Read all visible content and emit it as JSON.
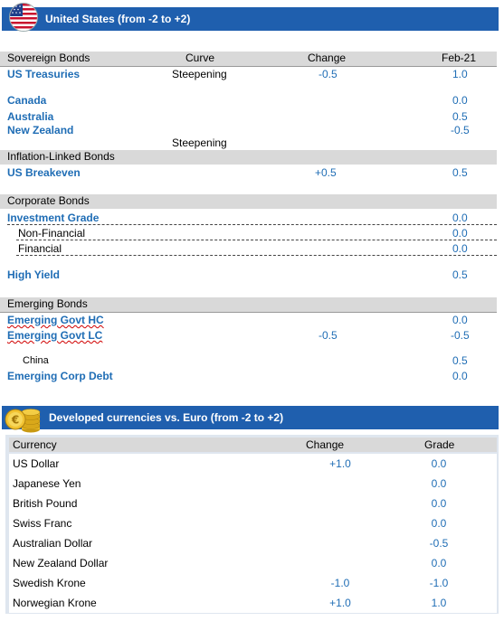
{
  "us_section": {
    "banner_title": "United States (from -2 to +2)",
    "flag_icon": "us-flag-icon",
    "headers": {
      "category": "Sovereign Bonds",
      "curve": "Curve",
      "change": "Change",
      "date": "Feb-21"
    },
    "sovereign": [
      {
        "name": "US Treasuries",
        "curve": "Steepening",
        "change": "-0.5",
        "value": "1.0"
      },
      {
        "name": "Canada",
        "value": "0.0"
      },
      {
        "name": "Australia",
        "value": "0.5"
      },
      {
        "name": "New Zealand",
        "value": "-0.5"
      },
      {
        "curve_only": "Steepening"
      }
    ],
    "inflation": {
      "title": "Inflation-Linked Bonds",
      "rows": [
        {
          "name": "US Breakeven",
          "change": "+0.5",
          "value": "0.5"
        }
      ]
    },
    "corporate": {
      "title": "Corporate Bonds",
      "rows": [
        {
          "name": "Investment Grade",
          "value": "0.0"
        },
        {
          "name": "Non-Financial",
          "value": "0.0"
        },
        {
          "name": "Financial",
          "value": "0.0"
        },
        {
          "name": "High Yield",
          "value": "0.5"
        }
      ]
    },
    "emerging": {
      "title": "Emerging Bonds",
      "rows": [
        {
          "name": "Emerging Govt HC",
          "value": "0.0"
        },
        {
          "name": "Emerging Govt LC",
          "change": "-0.5",
          "value": "-0.5"
        },
        {
          "name": "China",
          "value": "0.5"
        },
        {
          "name": "Emerging Corp Debt",
          "value": "0.0"
        }
      ]
    }
  },
  "fx_section": {
    "banner_title": "Developed currencies vs. Euro (from -2 to +2)",
    "coins_icon": "euro-coins-icon",
    "headers": {
      "currency": "Currency",
      "change": "Change",
      "grade": "Grade"
    },
    "rows": [
      {
        "name": "US Dollar",
        "change": "+1.0",
        "grade": "0.0"
      },
      {
        "name": "Japanese Yen",
        "change": "",
        "grade": "0.0"
      },
      {
        "name": "British Pound",
        "change": "",
        "grade": "0.0"
      },
      {
        "name": "Swiss Franc",
        "change": "",
        "grade": "0.0"
      },
      {
        "name": "Australian Dollar",
        "change": "",
        "grade": "-0.5"
      },
      {
        "name": "New Zealand Dollar",
        "change": "",
        "grade": "0.0"
      },
      {
        "name": "Swedish Krone",
        "change": "-1.0",
        "grade": "-1.0"
      },
      {
        "name": "Norwegian Krone",
        "change": "+1.0",
        "grade": "1.0"
      }
    ]
  },
  "colors": {
    "banner": "#1f5fae",
    "accent_text": "#1f6db5",
    "section_bar": "#d9d9d9",
    "fx_band": "#dfe6ef"
  }
}
